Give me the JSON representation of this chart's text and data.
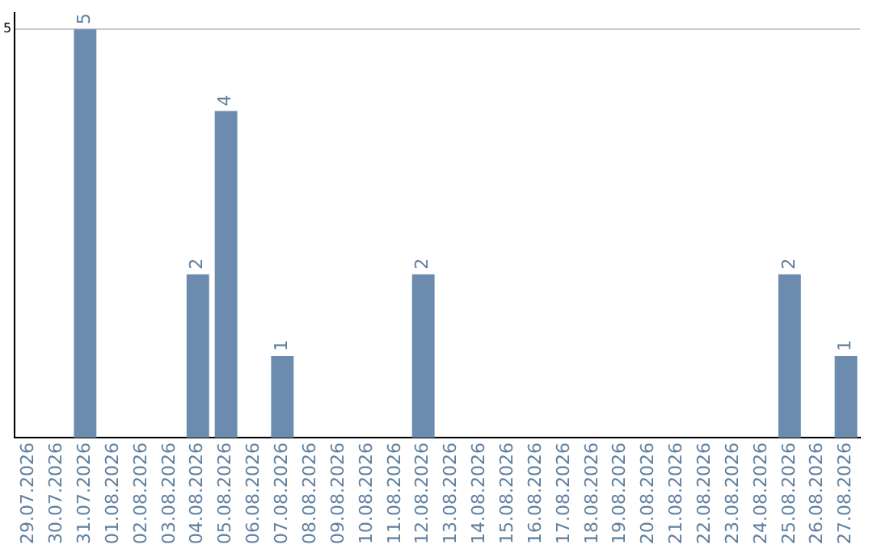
{
  "chart_data": {
    "type": "bar",
    "categories": [
      "29.07.2026",
      "30.07.2026",
      "31.07.2026",
      "01.08.2026",
      "02.08.2026",
      "03.08.2026",
      "04.08.2026",
      "05.08.2026",
      "06.08.2026",
      "07.08.2026",
      "08.08.2026",
      "09.08.2026",
      "10.08.2026",
      "11.08.2026",
      "12.08.2026",
      "13.08.2026",
      "14.08.2026",
      "15.08.2026",
      "16.08.2026",
      "17.08.2026",
      "18.08.2026",
      "19.08.2026",
      "20.08.2026",
      "21.08.2026",
      "22.08.2026",
      "23.08.2026",
      "24.08.2026",
      "25.08.2026",
      "26.08.2026",
      "27.08.2026"
    ],
    "values": [
      0,
      0,
      5,
      0,
      0,
      0,
      2,
      4,
      0,
      1,
      0,
      0,
      0,
      0,
      2,
      0,
      0,
      0,
      0,
      0,
      0,
      0,
      0,
      0,
      0,
      0,
      0,
      2,
      0,
      1
    ],
    "value_labels": [
      null,
      null,
      "5",
      null,
      null,
      null,
      "2",
      "4",
      null,
      "1",
      null,
      null,
      null,
      null,
      "2",
      null,
      null,
      null,
      null,
      null,
      null,
      null,
      null,
      null,
      null,
      null,
      null,
      "2",
      null,
      "1"
    ],
    "color": "#6b8cae",
    "ylim": [
      0,
      5.2
    ],
    "yticks": [
      5
    ],
    "grid": "y"
  }
}
